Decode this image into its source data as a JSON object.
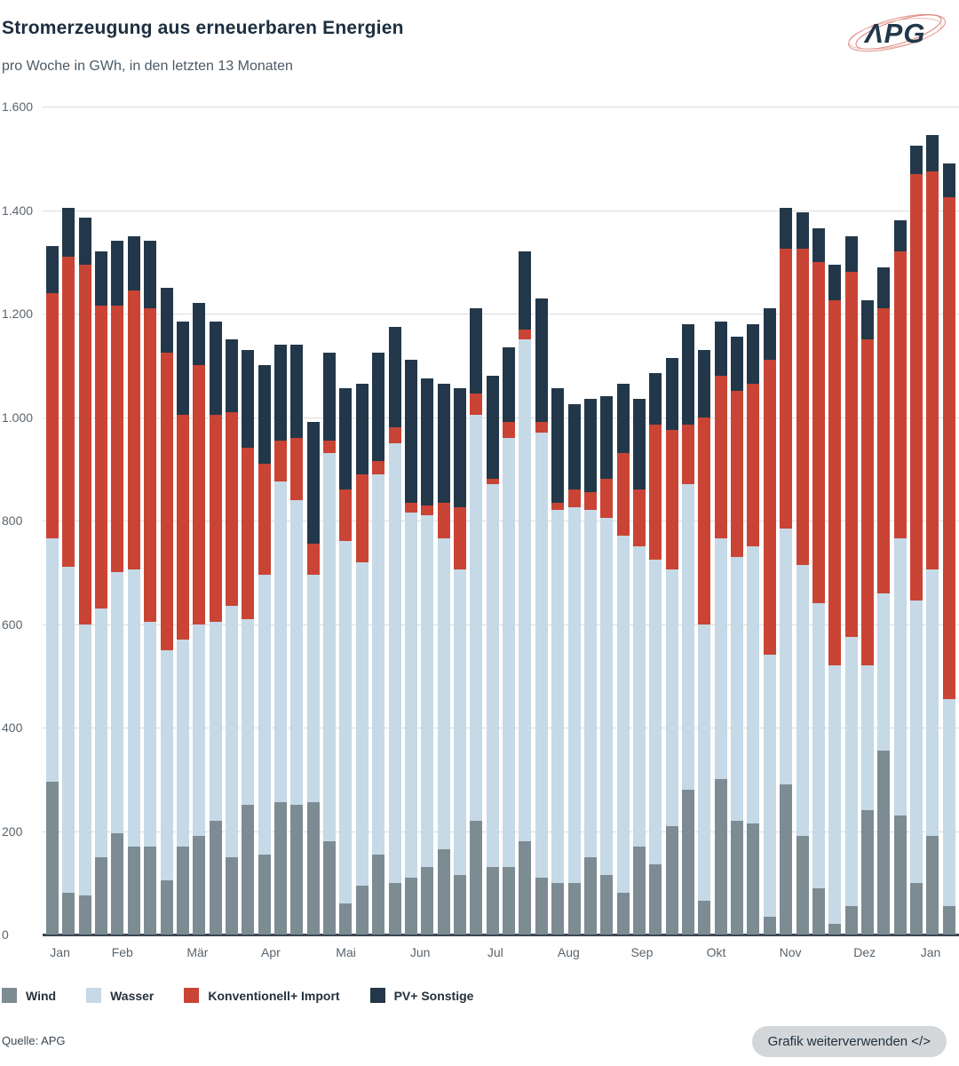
{
  "header": {
    "title": "Stromerzeugung aus erneuerbaren Energien",
    "subtitle": "pro Woche in GWh, in den letzten 13 Monaten",
    "logo_text": "APG"
  },
  "colors": {
    "wind": "#7d8b93",
    "wasser": "#c5d9e7",
    "konventionell": "#c94434",
    "pv": "#22384a",
    "gridline": "#dcdcdc",
    "axis_line": "#3b4754",
    "axis_text": "#5a646c",
    "title_text": "#1c2e3f",
    "button_bg": "#d3d7d9"
  },
  "chart_data": {
    "type": "bar",
    "stacked": true,
    "title": "Stromerzeugung aus erneuerbaren Energien",
    "subtitle": "pro Woche in GWh, in den letzten 13 Monaten",
    "unit": "GWh",
    "ylim": [
      0,
      1600
    ],
    "grid": true,
    "legend_position": "bottom",
    "yticks": [
      {
        "label": "1.600",
        "value": 1600
      },
      {
        "label": "1.400",
        "value": 1400
      },
      {
        "label": "1.200",
        "value": 1200
      },
      {
        "label": "1.000",
        "value": 1000
      },
      {
        "label": "800",
        "value": 800
      },
      {
        "label": "600",
        "value": 600
      },
      {
        "label": "400",
        "value": 400
      },
      {
        "label": "200",
        "value": 200
      },
      {
        "label": "0",
        "value": 0
      }
    ],
    "xticks": [
      {
        "label": "Jan",
        "pos": 1.9
      },
      {
        "label": "Feb",
        "pos": 8.7
      },
      {
        "label": "Mär",
        "pos": 16.9
      },
      {
        "label": "Apr",
        "pos": 24.9
      },
      {
        "label": "Mai",
        "pos": 33.1
      },
      {
        "label": "Jun",
        "pos": 41.2
      },
      {
        "label": "Jul",
        "pos": 49.4
      },
      {
        "label": "Aug",
        "pos": 57.4
      },
      {
        "label": "Sep",
        "pos": 65.4
      },
      {
        "label": "Okt",
        "pos": 73.5
      },
      {
        "label": "Nov",
        "pos": 81.6
      },
      {
        "label": "Dez",
        "pos": 89.7
      },
      {
        "label": "Jan",
        "pos": 96.9
      }
    ],
    "weeks": 56,
    "series": [
      {
        "name": "Wind",
        "color_key": "wind",
        "values": [
          295,
          80,
          75,
          150,
          195,
          170,
          170,
          105,
          170,
          190,
          220,
          150,
          250,
          155,
          255,
          250,
          255,
          180,
          60,
          95,
          155,
          100,
          110,
          130,
          165,
          115,
          220,
          130,
          130,
          180,
          110,
          100,
          100,
          150,
          115,
          80,
          170,
          135,
          210,
          280,
          65,
          300,
          220,
          215,
          35,
          290,
          190,
          90,
          20,
          55,
          240,
          355,
          230,
          100,
          190,
          55
        ]
      },
      {
        "name": "Wasser",
        "color_key": "wasser",
        "values": [
          470,
          630,
          525,
          480,
          505,
          535,
          435,
          445,
          400,
          410,
          385,
          485,
          360,
          540,
          620,
          590,
          440,
          750,
          700,
          625,
          735,
          850,
          705,
          680,
          600,
          590,
          785,
          740,
          830,
          970,
          860,
          720,
          725,
          670,
          690,
          690,
          580,
          590,
          495,
          590,
          535,
          465,
          510,
          535,
          505,
          495,
          525,
          550,
          500,
          520,
          280,
          305,
          535,
          545,
          515,
          400
        ]
      },
      {
        "name": "Konventionell+ Import",
        "color_key": "konventionell",
        "values": [
          475,
          600,
          695,
          585,
          515,
          540,
          605,
          575,
          435,
          500,
          400,
          375,
          330,
          215,
          80,
          120,
          60,
          25,
          100,
          170,
          25,
          30,
          20,
          20,
          70,
          120,
          40,
          10,
          30,
          20,
          20,
          15,
          35,
          35,
          75,
          160,
          110,
          260,
          270,
          115,
          400,
          315,
          320,
          315,
          570,
          540,
          610,
          660,
          705,
          705,
          630,
          550,
          555,
          825,
          770,
          970
        ]
      },
      {
        "name": "PV+ Sonstige",
        "color_key": "pv",
        "values": [
          90,
          95,
          90,
          105,
          125,
          105,
          130,
          125,
          180,
          120,
          180,
          140,
          190,
          190,
          185,
          180,
          235,
          170,
          195,
          175,
          210,
          195,
          275,
          245,
          230,
          230,
          165,
          200,
          145,
          150,
          240,
          220,
          165,
          180,
          160,
          135,
          175,
          100,
          140,
          195,
          130,
          105,
          105,
          115,
          100,
          80,
          70,
          65,
          70,
          70,
          75,
          80,
          60,
          55,
          70,
          65
        ]
      }
    ]
  },
  "legend": [
    {
      "label": "Wind",
      "color_key": "wind"
    },
    {
      "label": "Wasser",
      "color_key": "wasser"
    },
    {
      "label": "Konventionell+ Import",
      "color_key": "konventionell"
    },
    {
      "label": "PV+ Sonstige",
      "color_key": "pv"
    }
  ],
  "footer": {
    "source": "Quelle: APG",
    "button_label": "Grafik weiterverwenden </>"
  }
}
